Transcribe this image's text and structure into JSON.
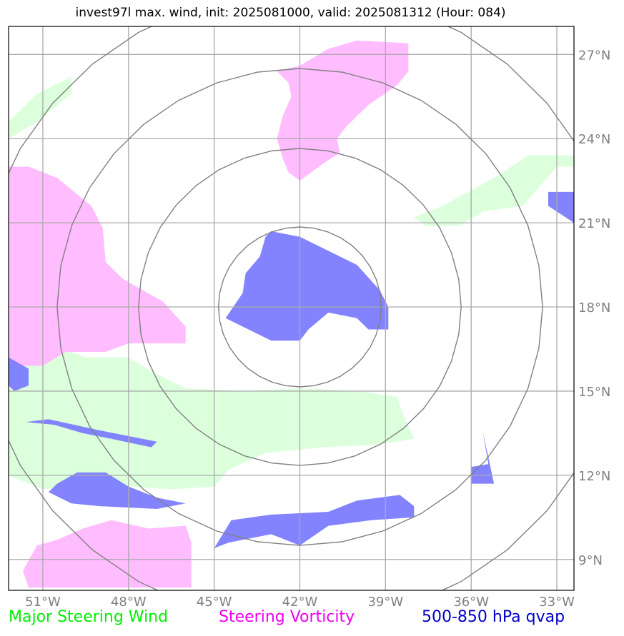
{
  "title": "invest97l max. wind, init: 2025081000, valid: 2025081312 (Hour: 084)",
  "map": {
    "lon_range": [
      -52.2,
      -32.4
    ],
    "lat_range": [
      7.9,
      28.0
    ],
    "lon_ticks": [
      {
        "value": -51,
        "label": "51°W"
      },
      {
        "value": -48,
        "label": "48°W"
      },
      {
        "value": -45,
        "label": "45°W"
      },
      {
        "value": -42,
        "label": "42°W"
      },
      {
        "value": -39,
        "label": "39°W"
      },
      {
        "value": -36,
        "label": "36°W"
      },
      {
        "value": -33,
        "label": "33°W"
      }
    ],
    "lat_ticks": [
      {
        "value": 9,
        "label": "9°N"
      },
      {
        "value": 12,
        "label": "12°N"
      },
      {
        "value": 15,
        "label": "15°N"
      },
      {
        "value": 18,
        "label": "18°N"
      },
      {
        "value": 21,
        "label": "21°N"
      },
      {
        "value": 24,
        "label": "24°N"
      },
      {
        "value": 27,
        "label": "27°N"
      }
    ],
    "center": {
      "lon": -42.0,
      "lat": 18.0
    },
    "range_rings_deg": [
      2.85,
      5.65,
      8.5,
      11.3
    ],
    "colors": {
      "grid": "#aaaaaa",
      "ring": "#808080",
      "wind": "#dcffdc",
      "vorticity": "#ffbcff",
      "qvap": "#7f7fff"
    },
    "fields": [
      {
        "kind": "wind",
        "polygons": [
          [
            [
              -52.2,
              24.6
            ],
            [
              -51.2,
              25.6
            ],
            [
              -50.0,
              26.2
            ],
            [
              -50.0,
              25.6
            ],
            [
              -51.2,
              24.6
            ],
            [
              -52.2,
              24.0
            ]
          ],
          [
            [
              -32.4,
              23.0
            ],
            [
              -33.0,
              23.0
            ],
            [
              -34.2,
              21.6
            ],
            [
              -35.6,
              21.4
            ],
            [
              -36.4,
              20.9
            ],
            [
              -37.6,
              20.9
            ],
            [
              -38.0,
              21.2
            ],
            [
              -37.0,
              21.6
            ],
            [
              -35.2,
              22.6
            ],
            [
              -34.0,
              23.4
            ],
            [
              -32.4,
              23.4
            ]
          ],
          [
            [
              -52.2,
              16.4
            ],
            [
              -50.5,
              16.6
            ],
            [
              -49.5,
              16.2
            ],
            [
              -48.0,
              16.2
            ],
            [
              -47.0,
              15.6
            ],
            [
              -46.0,
              15.1
            ],
            [
              -44.0,
              15.0
            ],
            [
              -42.0,
              15.1
            ],
            [
              -40.0,
              15.0
            ],
            [
              -38.6,
              14.8
            ],
            [
              -38.4,
              14.2
            ],
            [
              -38.0,
              13.3
            ],
            [
              -39.2,
              13.1
            ],
            [
              -41.2,
              13.0
            ],
            [
              -43.2,
              12.8
            ],
            [
              -44.5,
              12.2
            ],
            [
              -45.0,
              11.6
            ],
            [
              -46.5,
              11.5
            ],
            [
              -48.0,
              11.6
            ],
            [
              -50.0,
              11.6
            ],
            [
              -51.0,
              11.5
            ],
            [
              -52.2,
              12.0
            ]
          ]
        ]
      },
      {
        "kind": "vorticity",
        "polygons": [
          [
            [
              -52.2,
              23.0
            ],
            [
              -51.5,
              23.0
            ],
            [
              -50.5,
              22.6
            ],
            [
              -49.3,
              21.6
            ],
            [
              -48.9,
              20.8
            ],
            [
              -48.8,
              19.6
            ],
            [
              -48.2,
              19.0
            ],
            [
              -46.8,
              18.2
            ],
            [
              -46.0,
              17.3
            ],
            [
              -46.0,
              16.7
            ],
            [
              -48.0,
              16.7
            ],
            [
              -48.8,
              16.4
            ],
            [
              -50.2,
              16.4
            ],
            [
              -51.0,
              15.9
            ],
            [
              -52.2,
              15.9
            ]
          ],
          [
            [
              -42.0,
              26.6
            ],
            [
              -41.0,
              27.2
            ],
            [
              -40.0,
              27.5
            ],
            [
              -38.2,
              27.4
            ],
            [
              -38.2,
              26.4
            ],
            [
              -38.6,
              25.9
            ],
            [
              -39.6,
              25.2
            ],
            [
              -40.4,
              24.4
            ],
            [
              -40.7,
              24.0
            ],
            [
              -40.6,
              23.5
            ],
            [
              -41.2,
              23.1
            ],
            [
              -42.0,
              22.5
            ],
            [
              -42.4,
              22.8
            ],
            [
              -42.6,
              23.3
            ],
            [
              -42.8,
              24.0
            ],
            [
              -42.6,
              24.8
            ],
            [
              -42.3,
              25.5
            ],
            [
              -42.4,
              26.0
            ],
            [
              -42.8,
              26.4
            ]
          ],
          [
            [
              -51.5,
              8.0
            ],
            [
              -51.7,
              8.6
            ],
            [
              -51.2,
              9.5
            ],
            [
              -50.5,
              9.7
            ],
            [
              -49.6,
              10.1
            ],
            [
              -48.6,
              10.4
            ],
            [
              -47.3,
              10.1
            ],
            [
              -46.0,
              10.2
            ],
            [
              -45.8,
              9.6
            ],
            [
              -45.8,
              8.0
            ]
          ]
        ]
      },
      {
        "kind": "qvap",
        "polygons": [
          [
            [
              -43.0,
              20.7
            ],
            [
              -42.0,
              20.5
            ],
            [
              -41.0,
              20.0
            ],
            [
              -40.0,
              19.5
            ],
            [
              -39.2,
              18.6
            ],
            [
              -38.9,
              18.0
            ],
            [
              -38.9,
              17.2
            ],
            [
              -39.6,
              17.2
            ],
            [
              -40.0,
              17.6
            ],
            [
              -41.0,
              17.8
            ],
            [
              -41.7,
              17.2
            ],
            [
              -42.0,
              16.8
            ],
            [
              -43.0,
              16.8
            ],
            [
              -43.8,
              17.2
            ],
            [
              -44.6,
              17.6
            ],
            [
              -44.0,
              18.5
            ],
            [
              -43.9,
              19.2
            ],
            [
              -43.4,
              19.8
            ],
            [
              -43.2,
              20.5
            ]
          ],
          [
            [
              -52.2,
              16.2
            ],
            [
              -51.5,
              15.8
            ],
            [
              -51.5,
              15.2
            ],
            [
              -52.0,
              15.0
            ],
            [
              -52.2,
              15.2
            ]
          ],
          [
            [
              -51.6,
              13.9
            ],
            [
              -50.6,
              13.8
            ],
            [
              -49.6,
              13.5
            ],
            [
              -48.6,
              13.3
            ],
            [
              -47.2,
              13.0
            ],
            [
              -47.0,
              13.2
            ],
            [
              -49.0,
              13.6
            ],
            [
              -50.8,
              14.0
            ]
          ],
          [
            [
              -50.5,
              11.7
            ],
            [
              -49.8,
              12.1
            ],
            [
              -48.8,
              12.1
            ],
            [
              -48.0,
              11.6
            ],
            [
              -47.0,
              11.2
            ],
            [
              -46.0,
              11.0
            ],
            [
              -47.0,
              10.8
            ],
            [
              -49.0,
              10.9
            ],
            [
              -50.0,
              11.0
            ],
            [
              -50.8,
              11.4
            ]
          ],
          [
            [
              -45.0,
              9.4
            ],
            [
              -44.4,
              10.4
            ],
            [
              -43.0,
              10.6
            ],
            [
              -41.0,
              10.7
            ],
            [
              -40.0,
              11.1
            ],
            [
              -38.5,
              11.3
            ],
            [
              -38.0,
              10.9
            ],
            [
              -38.0,
              10.5
            ],
            [
              -39.5,
              10.4
            ],
            [
              -41.0,
              10.2
            ],
            [
              -42.0,
              9.5
            ],
            [
              -43.0,
              9.9
            ],
            [
              -44.5,
              9.6
            ]
          ],
          [
            [
              -36.0,
              12.3
            ],
            [
              -35.4,
              12.4
            ],
            [
              -35.6,
              13.6
            ],
            [
              -35.2,
              11.7
            ],
            [
              -36.0,
              11.7
            ]
          ],
          [
            [
              -32.4,
              22.1
            ],
            [
              -33.3,
              22.1
            ],
            [
              -33.3,
              21.6
            ],
            [
              -32.4,
              21.0
            ]
          ]
        ]
      }
    ]
  },
  "legend": [
    {
      "label": "Major Steering Wind",
      "color": "#00ee00"
    },
    {
      "label": "Steering Vorticity",
      "color": "#ee00ee"
    },
    {
      "label": "500-850 hPa qvap",
      "color": "#0000cc"
    }
  ]
}
